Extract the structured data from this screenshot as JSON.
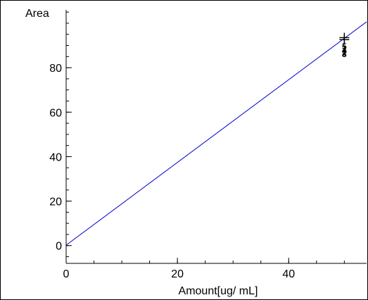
{
  "chart_data": {
    "type": "scatter",
    "title": "",
    "xlabel": "Amount[ug/ mL]",
    "ylabel": "Area",
    "xlim": [
      0,
      54
    ],
    "ylim": [
      -8,
      106
    ],
    "x_major_ticks": [
      0,
      20,
      40
    ],
    "x_minor_step": 5,
    "y_major_ticks": [
      0,
      20,
      40,
      60,
      80
    ],
    "y_minor_step": 5,
    "x_tick_labels": [
      "0",
      "20",
      "40"
    ],
    "y_tick_labels": [
      "0",
      "20",
      "40",
      "60",
      "80"
    ],
    "grid": false,
    "fit_line": {
      "slope": 1.86,
      "intercept": 0.2,
      "x_range": [
        0,
        54
      ],
      "color": "#0000cc"
    },
    "points": [
      {
        "x": 50,
        "y": 93.5,
        "marker": "+"
      },
      {
        "x": 50,
        "y": 92.6,
        "marker": "+"
      }
    ],
    "point_labels": [
      {
        "x": 50,
        "y": 88.2,
        "text": "5"
      },
      {
        "x": 50,
        "y": 87.3,
        "text": "1"
      },
      {
        "x": 50,
        "y": 86.4,
        "text": "4"
      },
      {
        "x": 50,
        "y": 85.6,
        "text": "2"
      },
      {
        "x": 50,
        "y": 84.8,
        "text": "3"
      }
    ]
  }
}
